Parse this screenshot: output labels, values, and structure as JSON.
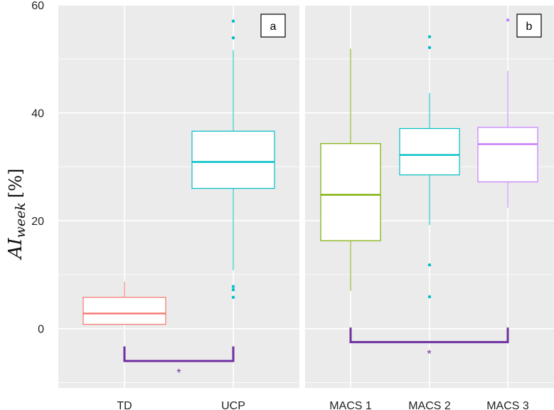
{
  "chart_data": {
    "type": "boxplot",
    "ylabel": "AI",
    "ylabel_sub": "week",
    "ylabel_unit": "[%]",
    "ylim": [
      -11,
      60
    ],
    "yticks": [
      0,
      20,
      40,
      60
    ],
    "panels": [
      {
        "label": "a",
        "groups": [
          {
            "name": "TD",
            "color": "#f8766d",
            "whisker_low": 0.8,
            "q1": 0.8,
            "median": 2.8,
            "q3": 5.8,
            "whisker_high": 8.7,
            "outliers": []
          },
          {
            "name": "UCP",
            "color": "#00bfc4",
            "whisker_low": 10.8,
            "q1": 26.0,
            "median": 30.9,
            "q3": 36.6,
            "whisker_high": 51.6,
            "outliers": [
              5.8,
              7.2,
              7.8,
              53.9,
              57.0
            ]
          }
        ],
        "significance": {
          "symbol": "*",
          "from": "TD",
          "to": "UCP",
          "color": "#7030a0"
        }
      },
      {
        "label": "b",
        "groups": [
          {
            "name": "MACS 1",
            "color": "#7cae00",
            "whisker_low": 7.0,
            "q1": 16.3,
            "median": 24.8,
            "q3": 34.3,
            "whisker_high": 51.9,
            "outliers": []
          },
          {
            "name": "MACS 2",
            "color": "#00bfc4",
            "whisker_low": 19.2,
            "q1": 28.5,
            "median": 32.2,
            "q3": 37.1,
            "whisker_high": 43.7,
            "outliers": [
              5.9,
              11.8,
              52.1,
              54.1
            ]
          },
          {
            "name": "MACS 3",
            "color": "#c77cff",
            "whisker_low": 22.4,
            "q1": 27.2,
            "median": 34.2,
            "q3": 37.3,
            "whisker_high": 47.8,
            "outliers": [
              57.2
            ]
          }
        ],
        "significance": {
          "symbol": "*",
          "from": "MACS 1",
          "to": "MACS 3",
          "color": "#7030a0"
        }
      }
    ]
  }
}
